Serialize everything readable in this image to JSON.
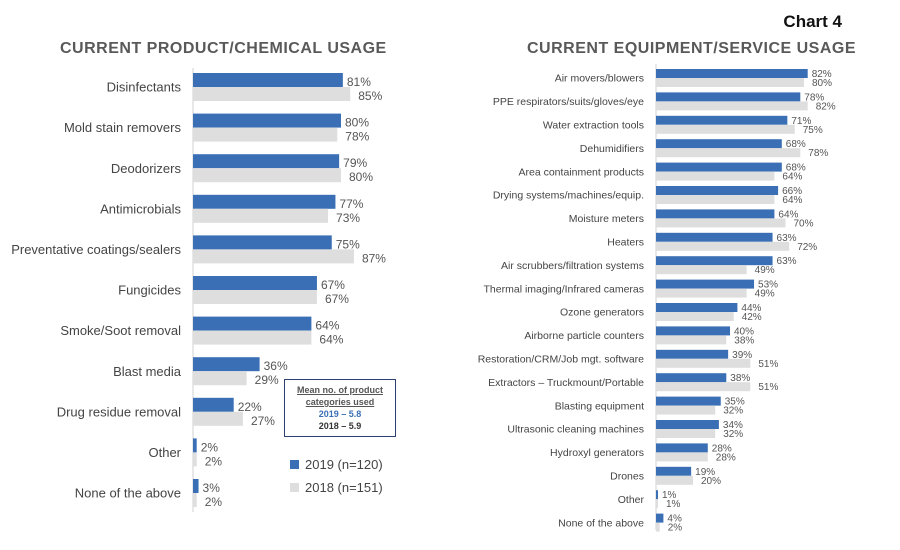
{
  "chart_label": "Chart 4",
  "colors": {
    "s2019": "#3a6fb5",
    "s2018": "#dedede"
  },
  "legend": [
    {
      "label": "2019 (n=120)"
    },
    {
      "label": "2018 (n=151)"
    }
  ],
  "mean_box": {
    "title1": "Mean no. of product",
    "title2": "categories used",
    "line2019": "2019 – 5.8",
    "line2018": "2018 – 5.9"
  },
  "chart_data": [
    {
      "type": "bar",
      "orientation": "horizontal",
      "title": "CURRENT PRODUCT/CHEMICAL USAGE",
      "unit": "%",
      "legend_placement": "bottom-right",
      "categories": [
        "Disinfectants",
        "Mold stain removers",
        "Deodorizers",
        "Antimicrobials",
        "Preventative coatings/sealers",
        "Fungicides",
        "Smoke/Soot removal",
        "Blast media",
        "Drug residue removal",
        "Other",
        "None of the above"
      ],
      "series": [
        {
          "name": "2019 (n=120)",
          "values": [
            81,
            80,
            79,
            77,
            75,
            67,
            64,
            36,
            22,
            2,
            3
          ]
        },
        {
          "name": "2018 (n=151)",
          "values": [
            85,
            78,
            80,
            73,
            87,
            67,
            64,
            29,
            27,
            2,
            2
          ]
        }
      ]
    },
    {
      "type": "bar",
      "orientation": "horizontal",
      "title": "CURRENT EQUIPMENT/SERVICE USAGE",
      "unit": "%",
      "categories": [
        "Air movers/blowers",
        "PPE respirators/suits/gloves/eye",
        "Water extraction tools",
        "Dehumidifiers",
        "Area containment products",
        "Drying systems/machines/equip.",
        "Moisture meters",
        "Heaters",
        "Air scrubbers/filtration systems",
        "Thermal imaging/Infrared cameras",
        "Ozone generators",
        "Airborne particle counters",
        "Restoration/CRM/Job mgt. software",
        "Extractors – Truckmount/Portable",
        "Blasting equipment",
        "Ultrasonic cleaning machines",
        "Hydroxyl generators",
        "Drones",
        "Other",
        "None of the above"
      ],
      "series": [
        {
          "name": "2019 (n=120)",
          "values": [
            82,
            78,
            71,
            68,
            68,
            66,
            64,
            63,
            63,
            53,
            44,
            40,
            39,
            38,
            35,
            34,
            28,
            19,
            1,
            4
          ]
        },
        {
          "name": "2018 (n=151)",
          "values": [
            80,
            82,
            75,
            78,
            64,
            64,
            70,
            72,
            49,
            49,
            42,
            38,
            51,
            51,
            32,
            32,
            28,
            20,
            1,
            2
          ]
        }
      ]
    }
  ]
}
